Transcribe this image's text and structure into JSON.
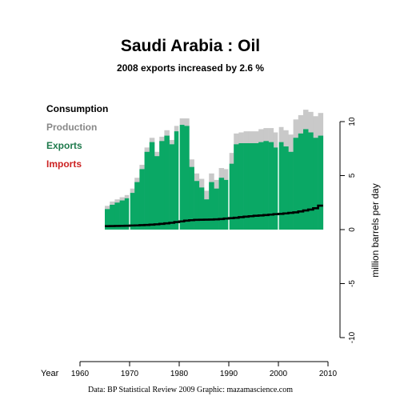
{
  "chart_data": {
    "type": "area",
    "title": "Saudi Arabia :  Oil",
    "subtitle": "2008 exports increased by 2.6 %",
    "xlabel": "Year",
    "ylabel": "million barrels per day",
    "source": "Data: BP Statistical Review 2009    Graphic: mazamascience.com",
    "xlim": [
      1960,
      2010
    ],
    "ylim": [
      -10,
      10
    ],
    "x_ticks": [
      1960,
      1970,
      1980,
      1990,
      2000,
      2010
    ],
    "y_ticks": [
      -10,
      -5,
      0,
      5,
      10
    ],
    "legend_position": "top-left",
    "legend": [
      {
        "label": "Consumption",
        "color": "#000000"
      },
      {
        "label": "Production",
        "color": "#888888"
      },
      {
        "label": "Exports",
        "color": "#1e7a4c"
      },
      {
        "label": "Imports",
        "color": "#cc2222"
      }
    ],
    "colors": {
      "production": "#c9c9c9",
      "exports": "#0aa865",
      "consumption": "#000000"
    },
    "years": [
      1965,
      1966,
      1967,
      1968,
      1969,
      1970,
      1971,
      1972,
      1973,
      1974,
      1975,
      1976,
      1977,
      1978,
      1979,
      1980,
      1981,
      1982,
      1983,
      1984,
      1985,
      1986,
      1987,
      1988,
      1989,
      1990,
      1991,
      1992,
      1993,
      1994,
      1995,
      1996,
      1997,
      1998,
      1999,
      2000,
      2001,
      2002,
      2003,
      2004,
      2005,
      2006,
      2007,
      2008
    ],
    "series": [
      {
        "name": "Production",
        "values": [
          2.2,
          2.6,
          2.8,
          3.0,
          3.2,
          3.8,
          4.8,
          6.0,
          7.6,
          8.5,
          7.2,
          8.6,
          9.2,
          8.3,
          9.6,
          10.3,
          10.3,
          6.5,
          5.2,
          4.7,
          3.6,
          5.2,
          4.6,
          5.7,
          5.6,
          7.1,
          8.9,
          9.0,
          9.1,
          9.1,
          9.1,
          9.3,
          9.4,
          9.4,
          9.0,
          9.5,
          9.2,
          8.8,
          10.2,
          10.6,
          11.1,
          10.9,
          10.5,
          10.8
        ]
      },
      {
        "name": "Exports",
        "values": [
          1.9,
          2.3,
          2.5,
          2.7,
          2.9,
          3.4,
          4.4,
          5.6,
          7.2,
          8.1,
          6.8,
          8.2,
          8.7,
          7.9,
          9.1,
          9.7,
          9.6,
          5.8,
          4.5,
          3.9,
          2.8,
          4.4,
          3.8,
          4.8,
          4.6,
          6.1,
          7.9,
          8.0,
          8.0,
          8.0,
          8.0,
          8.1,
          8.2,
          8.1,
          7.6,
          8.1,
          7.7,
          7.2,
          8.5,
          8.9,
          9.3,
          9.0,
          8.5,
          8.7
        ]
      },
      {
        "name": "Consumption",
        "values": [
          0.32,
          0.33,
          0.34,
          0.35,
          0.36,
          0.38,
          0.39,
          0.41,
          0.43,
          0.46,
          0.49,
          0.53,
          0.58,
          0.63,
          0.7,
          0.76,
          0.83,
          0.87,
          0.9,
          0.91,
          0.92,
          0.93,
          0.95,
          0.98,
          1.02,
          1.06,
          1.1,
          1.15,
          1.2,
          1.24,
          1.28,
          1.31,
          1.35,
          1.39,
          1.43,
          1.46,
          1.5,
          1.55,
          1.6,
          1.68,
          1.77,
          1.86,
          1.98,
          2.22
        ]
      }
    ]
  }
}
